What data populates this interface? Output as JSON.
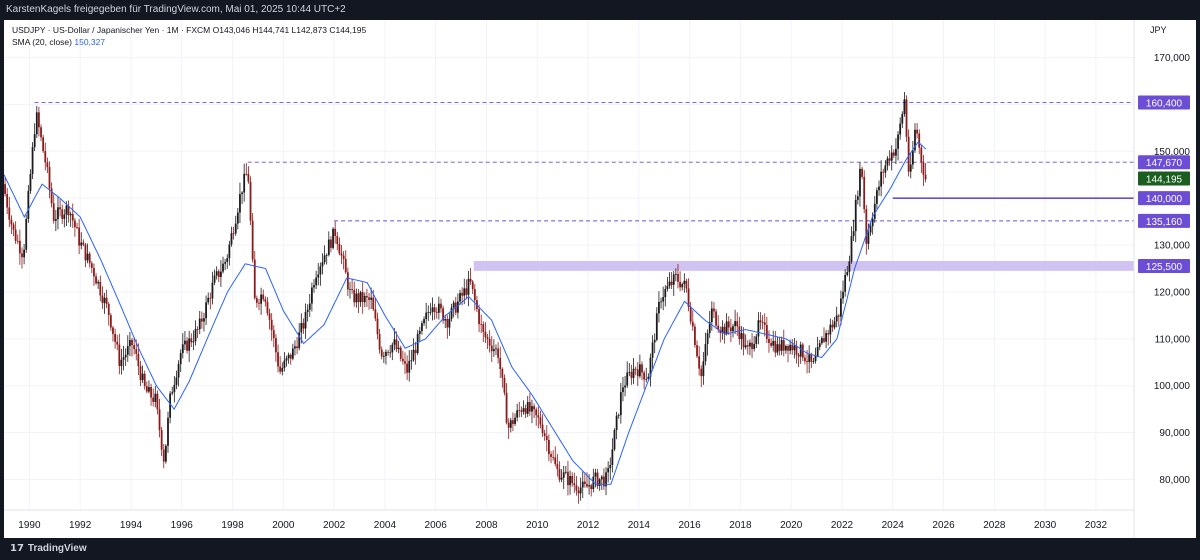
{
  "header": {
    "publisher_line": "KarstenKagels freigegeben für TradingView.com, Mai 01, 2025 10:44 UTC+2"
  },
  "legend": {
    "symbol_line": "USDJPY · US-Dollar / Japanischer Yen · 1M · FXCM",
    "ohlc": "O143,046 H144,741 L142,873 C144,195",
    "sma_label": "SMA (20, close)",
    "sma_value": "150,327"
  },
  "footer": {
    "brand": "TradingView",
    "logo_glyph": "17"
  },
  "currency_label": "JPY",
  "colors": {
    "up": "#1b1b1b",
    "down": "#8b1a1a",
    "sma": "#2962ff",
    "level": "#6c4ed6",
    "band": "#c9b8ef",
    "current": "#1b5e20"
  },
  "chart_data": {
    "type": "candlestick",
    "title": "USDJPY · US-Dollar / Japanischer Yen · 1M · FXCM",
    "xlim": [
      1989.0,
      2033.5
    ],
    "ylim": [
      73.5,
      178.0
    ],
    "x_ticks": [
      "1990",
      "1992",
      "1994",
      "1996",
      "1998",
      "2000",
      "2002",
      "2004",
      "2006",
      "2008",
      "2010",
      "2012",
      "2014",
      "2016",
      "2018",
      "2020",
      "2022",
      "2024",
      "2026",
      "2028",
      "2030",
      "2032"
    ],
    "y_ticks": [
      "80,000",
      "90,000",
      "100,000",
      "110,000",
      "120,000",
      "130,000",
      "140,000",
      "150,000",
      "160,000",
      "170,000"
    ],
    "price_anchors": [
      [
        1989.0,
        143
      ],
      [
        1989.4,
        133
      ],
      [
        1989.8,
        128
      ],
      [
        1990.3,
        158
      ],
      [
        1990.7,
        147
      ],
      [
        1991.0,
        136
      ],
      [
        1991.6,
        138
      ],
      [
        1992.0,
        131
      ],
      [
        1992.6,
        124
      ],
      [
        1993.2,
        115
      ],
      [
        1993.6,
        105
      ],
      [
        1994.1,
        109
      ],
      [
        1994.6,
        99
      ],
      [
        1995.0,
        97
      ],
      [
        1995.35,
        84
      ],
      [
        1995.6,
        98
      ],
      [
        1996.0,
        107
      ],
      [
        1996.7,
        112
      ],
      [
        1997.3,
        122
      ],
      [
        1997.8,
        127
      ],
      [
        1998.4,
        142
      ],
      [
        1998.65,
        146
      ],
      [
        1998.9,
        118
      ],
      [
        1999.3,
        120
      ],
      [
        1999.9,
        103
      ],
      [
        2000.4,
        107
      ],
      [
        2000.9,
        114
      ],
      [
        2001.3,
        124
      ],
      [
        2002.1,
        133
      ],
      [
        2002.7,
        119
      ],
      [
        2003.5,
        118
      ],
      [
        2003.9,
        107
      ],
      [
        2004.4,
        109
      ],
      [
        2004.9,
        103
      ],
      [
        2005.9,
        118
      ],
      [
        2006.5,
        114
      ],
      [
        2007.4,
        122
      ],
      [
        2007.9,
        111
      ],
      [
        2008.5,
        107
      ],
      [
        2008.9,
        91
      ],
      [
        2009.5,
        96
      ],
      [
        2010.2,
        92
      ],
      [
        2010.8,
        82
      ],
      [
        2011.5,
        79
      ],
      [
        2011.9,
        78
      ],
      [
        2012.3,
        80
      ],
      [
        2012.8,
        80
      ],
      [
        2013.4,
        100
      ],
      [
        2013.9,
        104
      ],
      [
        2014.4,
        102
      ],
      [
        2014.9,
        119
      ],
      [
        2015.5,
        123
      ],
      [
        2015.9,
        121
      ],
      [
        2016.5,
        102
      ],
      [
        2016.9,
        116
      ],
      [
        2017.3,
        112
      ],
      [
        2017.9,
        113
      ],
      [
        2018.3,
        107
      ],
      [
        2018.8,
        113
      ],
      [
        2019.5,
        108
      ],
      [
        2019.9,
        109
      ],
      [
        2020.5,
        107
      ],
      [
        2020.9,
        104
      ],
      [
        2021.3,
        110
      ],
      [
        2021.9,
        115
      ],
      [
        2022.4,
        130
      ],
      [
        2022.8,
        148
      ],
      [
        2023.0,
        131
      ],
      [
        2023.6,
        145
      ],
      [
        2023.9,
        149
      ],
      [
        2024.2,
        151
      ],
      [
        2024.5,
        161
      ],
      [
        2024.7,
        143
      ],
      [
        2024.95,
        156
      ],
      [
        2025.1,
        150
      ],
      [
        2025.33,
        144.195
      ]
    ],
    "sma_anchors": [
      [
        1989.0,
        145
      ],
      [
        1989.8,
        136
      ],
      [
        1990.5,
        143
      ],
      [
        1991.2,
        140
      ],
      [
        1992.0,
        136
      ],
      [
        1992.8,
        127
      ],
      [
        1993.6,
        117
      ],
      [
        1994.3,
        108
      ],
      [
        1995.0,
        100
      ],
      [
        1995.7,
        95
      ],
      [
        1996.3,
        101
      ],
      [
        1997.0,
        110
      ],
      [
        1997.8,
        120
      ],
      [
        1998.5,
        126
      ],
      [
        1999.3,
        125
      ],
      [
        2000.0,
        116
      ],
      [
        2000.8,
        109
      ],
      [
        2001.6,
        113
      ],
      [
        2002.5,
        123
      ],
      [
        2003.3,
        122
      ],
      [
        2004.0,
        115
      ],
      [
        2004.8,
        108
      ],
      [
        2005.6,
        110
      ],
      [
        2006.4,
        115
      ],
      [
        2007.3,
        119
      ],
      [
        2008.2,
        114
      ],
      [
        2009.0,
        104
      ],
      [
        2009.8,
        98
      ],
      [
        2010.6,
        91
      ],
      [
        2011.4,
        84
      ],
      [
        2012.3,
        79
      ],
      [
        2012.9,
        79
      ],
      [
        2013.6,
        90
      ],
      [
        2014.3,
        100
      ],
      [
        2015.0,
        110
      ],
      [
        2015.8,
        118
      ],
      [
        2016.6,
        114
      ],
      [
        2017.4,
        111
      ],
      [
        2018.2,
        112
      ],
      [
        2019.0,
        111
      ],
      [
        2019.8,
        110
      ],
      [
        2020.6,
        107
      ],
      [
        2021.2,
        106
      ],
      [
        2021.8,
        110
      ],
      [
        2022.5,
        125
      ],
      [
        2023.2,
        136
      ],
      [
        2023.9,
        142
      ],
      [
        2024.5,
        148
      ],
      [
        2025.0,
        152
      ],
      [
        2025.33,
        150.327
      ]
    ],
    "levels": [
      {
        "label": "160,400",
        "value": 160.4,
        "x_start": 1990.2
      },
      {
        "label": "147,670",
        "value": 147.67,
        "x_start": 1998.6
      },
      {
        "label": "135,160",
        "value": 135.16,
        "x_start": 2002.0
      },
      {
        "label": "140,000",
        "value": 140.0,
        "x_start": 2024.0,
        "solid": true
      }
    ],
    "zones": [
      {
        "label": "125,500",
        "from": 124.5,
        "to": 126.6,
        "x_start": 2007.5
      }
    ],
    "current_price": {
      "label": "144,195",
      "value": 144.195
    }
  }
}
